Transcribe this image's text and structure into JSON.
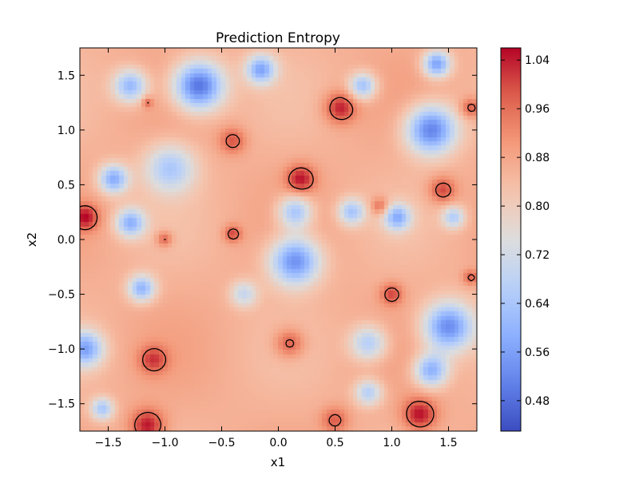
{
  "chart_data": {
    "type": "heatmap",
    "title": "Prediction Entropy",
    "xlabel": "x1",
    "ylabel": "x2",
    "xlim": [
      -1.75,
      1.75
    ],
    "ylim": [
      -1.75,
      1.75
    ],
    "x_ticks": [
      -1.5,
      -1.0,
      -0.5,
      0.0,
      0.5,
      1.0,
      1.5
    ],
    "x_tick_labels": [
      "−1.5",
      "−1.0",
      "−0.5",
      "0.0",
      "0.5",
      "1.0",
      "1.5"
    ],
    "y_ticks": [
      1.5,
      1.0,
      0.5,
      0.0,
      -0.5,
      -1.0,
      -1.5
    ],
    "y_tick_labels": [
      "1.5",
      "1.0",
      "0.5",
      "0.0",
      "−0.5",
      "−1.0",
      "−1.5"
    ],
    "colormap": "coolwarm",
    "colorbar": {
      "vmin": 0.43,
      "vmax": 1.06,
      "ticks": [
        1.04,
        0.96,
        0.88,
        0.8,
        0.72,
        0.64,
        0.56,
        0.48
      ],
      "tick_labels": [
        "1.04",
        "0.96",
        "0.88",
        "0.80",
        "0.72",
        "0.64",
        "0.56",
        "0.48"
      ],
      "placement": "right"
    },
    "contour_level": 0.96,
    "grid": false,
    "features": [
      {
        "type": "low",
        "x": -0.7,
        "y": 1.4,
        "r": 0.22,
        "v": 0.47
      },
      {
        "type": "low",
        "x": -1.3,
        "y": 1.4,
        "r": 0.15,
        "v": 0.6
      },
      {
        "type": "low",
        "x": -0.15,
        "y": 1.55,
        "r": 0.13,
        "v": 0.58
      },
      {
        "type": "low",
        "x": 1.35,
        "y": 1.0,
        "r": 0.22,
        "v": 0.5
      },
      {
        "type": "low",
        "x": 1.4,
        "y": 1.6,
        "r": 0.12,
        "v": 0.55
      },
      {
        "type": "low",
        "x": 0.75,
        "y": 1.4,
        "r": 0.12,
        "v": 0.62
      },
      {
        "type": "low",
        "x": -1.45,
        "y": 0.55,
        "r": 0.13,
        "v": 0.58
      },
      {
        "type": "low",
        "x": -1.3,
        "y": 0.15,
        "r": 0.13,
        "v": 0.6
      },
      {
        "type": "low",
        "x": -1.2,
        "y": -0.45,
        "r": 0.12,
        "v": 0.6
      },
      {
        "type": "low",
        "x": -0.95,
        "y": 0.65,
        "r": 0.22,
        "v": 0.65
      },
      {
        "type": "low",
        "x": 0.15,
        "y": -0.2,
        "r": 0.22,
        "v": 0.52
      },
      {
        "type": "low",
        "x": 0.15,
        "y": 0.25,
        "r": 0.15,
        "v": 0.62
      },
      {
        "type": "low",
        "x": 0.65,
        "y": 0.25,
        "r": 0.12,
        "v": 0.64
      },
      {
        "type": "low",
        "x": 1.05,
        "y": 0.2,
        "r": 0.12,
        "v": 0.6
      },
      {
        "type": "low",
        "x": 1.5,
        "y": -0.8,
        "r": 0.22,
        "v": 0.52
      },
      {
        "type": "low",
        "x": 1.35,
        "y": -1.2,
        "r": 0.15,
        "v": 0.58
      },
      {
        "type": "low",
        "x": -1.7,
        "y": -1.0,
        "r": 0.16,
        "v": 0.58
      },
      {
        "type": "low",
        "x": 0.8,
        "y": -0.95,
        "r": 0.16,
        "v": 0.65
      },
      {
        "type": "low",
        "x": 0.8,
        "y": -1.4,
        "r": 0.12,
        "v": 0.66
      },
      {
        "type": "low",
        "x": -1.55,
        "y": -1.55,
        "r": 0.1,
        "v": 0.64
      },
      {
        "type": "low",
        "x": -0.3,
        "y": -0.5,
        "r": 0.12,
        "v": 0.7
      },
      {
        "type": "low",
        "x": 1.55,
        "y": 0.2,
        "r": 0.1,
        "v": 0.66
      },
      {
        "type": "high",
        "x": 0.55,
        "y": 1.2,
        "r": 0.14,
        "v": 1.04
      },
      {
        "type": "high",
        "x": 0.2,
        "y": 0.55,
        "r": 0.13,
        "v": 1.04
      },
      {
        "type": "high",
        "x": -0.4,
        "y": 0.9,
        "r": 0.12,
        "v": 0.99
      },
      {
        "type": "high",
        "x": 1.45,
        "y": 0.45,
        "r": 0.12,
        "v": 1.01
      },
      {
        "type": "high",
        "x": -1.7,
        "y": 0.2,
        "r": 0.12,
        "v": 1.04
      },
      {
        "type": "high",
        "x": -1.15,
        "y": -1.7,
        "r": 0.15,
        "v": 1.05
      },
      {
        "type": "high",
        "x": 1.25,
        "y": -1.6,
        "r": 0.15,
        "v": 1.05
      },
      {
        "type": "high",
        "x": -1.1,
        "y": -1.1,
        "r": 0.13,
        "v": 1.0
      },
      {
        "type": "high",
        "x": 0.1,
        "y": -0.95,
        "r": 0.13,
        "v": 1.0
      },
      {
        "type": "high",
        "x": 1.0,
        "y": -0.5,
        "r": 0.1,
        "v": 1.0
      },
      {
        "type": "high",
        "x": -0.4,
        "y": 0.05,
        "r": 0.08,
        "v": 1.0
      },
      {
        "type": "high",
        "x": 0.9,
        "y": 0.3,
        "r": 0.08,
        "v": 0.99
      },
      {
        "type": "high",
        "x": -1.0,
        "y": 0.0,
        "r": 0.07,
        "v": 0.99
      },
      {
        "type": "high",
        "x": -1.15,
        "y": 1.25,
        "r": 0.05,
        "v": 0.98
      },
      {
        "type": "high",
        "x": 1.7,
        "y": 1.2,
        "r": 0.09,
        "v": 1.0
      },
      {
        "type": "high",
        "x": 0.5,
        "y": -1.65,
        "r": 0.12,
        "v": 0.98
      },
      {
        "type": "high",
        "x": 1.7,
        "y": -0.35,
        "r": 0.07,
        "v": 0.98
      }
    ]
  }
}
